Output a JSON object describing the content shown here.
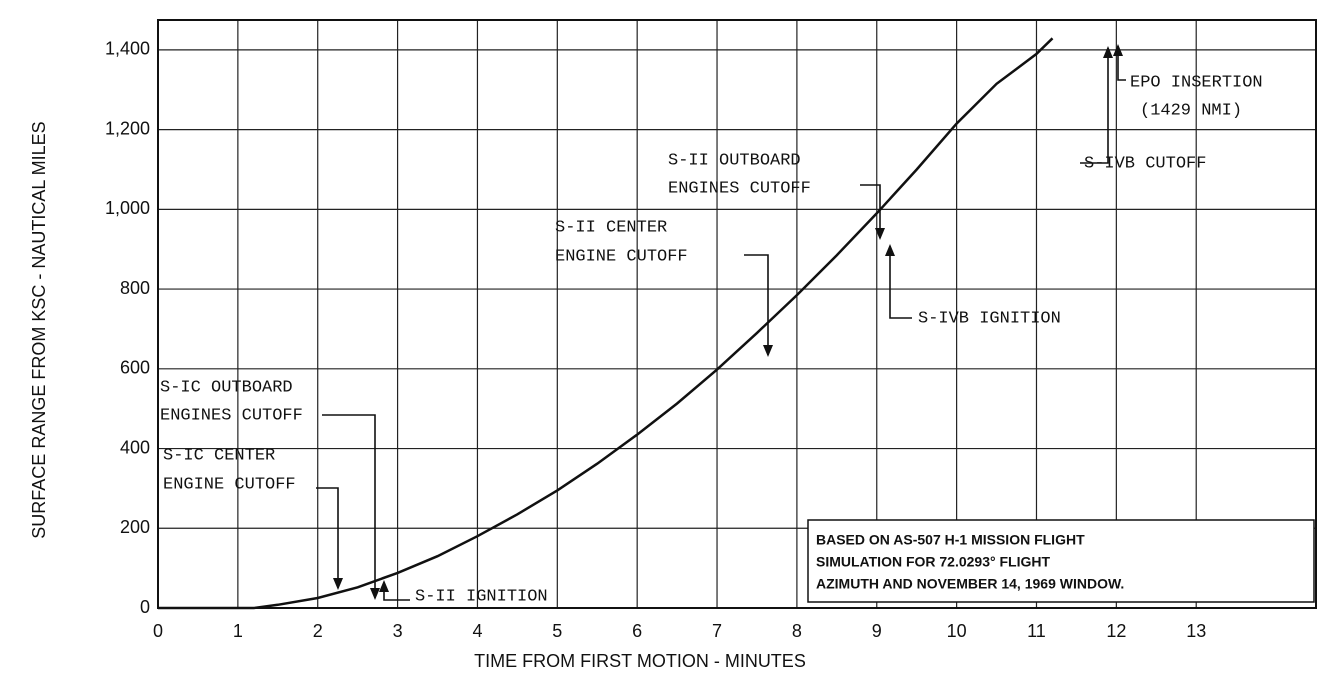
{
  "chart_data": {
    "type": "line",
    "x_label": "TIME FROM FIRST MOTION - MINUTES",
    "y_label": "SURFACE RANGE FROM KSC - NAUTICAL MILES",
    "x": [
      0,
      1,
      1.2,
      1.5,
      2,
      2.5,
      3,
      3.5,
      4,
      4.5,
      5,
      5.5,
      6,
      6.5,
      7,
      7.5,
      8,
      8.5,
      9,
      9.5,
      10,
      10.5,
      11,
      11.2
    ],
    "series": [
      {
        "name": "Surface range",
        "color": "#111111",
        "values": [
          0,
          0,
          0,
          8,
          25,
          52,
          88,
          130,
          180,
          235,
          295,
          362,
          435,
          513,
          598,
          690,
          785,
          885,
          990,
          1100,
          1215,
          1315,
          1390,
          1429
        ]
      }
    ],
    "xlim": [
      0,
      14.5
    ],
    "ylim": [
      0,
      1475
    ],
    "xticks": [
      0,
      1,
      2,
      3,
      4,
      5,
      6,
      7,
      8,
      9,
      10,
      11,
      12,
      13
    ],
    "yticks": [
      0,
      200,
      400,
      600,
      800,
      {
        "value": 1000,
        "label": "1,000"
      },
      {
        "value": 1200,
        "label": "1,200"
      },
      {
        "value": 1400,
        "label": "1,400"
      }
    ],
    "grid": true,
    "annotations": [
      "S-IC OUTBOARD",
      "ENGINES CUTOFF",
      "S-IC CENTER",
      "ENGINE CUTOFF",
      "S-II IGNITION",
      "S-II CENTER",
      "ENGINE CUTOFF",
      "S-II OUTBOARD",
      "ENGINES CUTOFF",
      "S-IVB IGNITION",
      "EPO INSERTION",
      "(1429 NMI)",
      "S-IVB CUTOFF"
    ],
    "note": [
      "BASED ON AS-507 H-1 MISSION FLIGHT",
      "SIMULATION FOR 72.0293° FLIGHT",
      "AZIMUTH AND NOVEMBER 14, 1969 WINDOW."
    ]
  }
}
